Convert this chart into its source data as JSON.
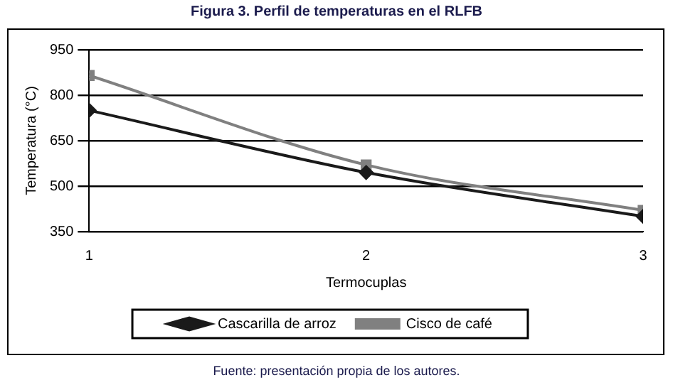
{
  "chart_data": {
    "type": "line",
    "title": "Figura 3. Perfil de temperaturas en el RLFB",
    "xlabel": "Termocuplas",
    "ylabel": "Temperatura (°C)",
    "x": [
      1,
      2,
      3
    ],
    "xlim": [
      1,
      3
    ],
    "xticks": [
      1,
      2,
      3
    ],
    "ylim": [
      350,
      950
    ],
    "yticks": [
      350,
      500,
      650,
      800,
      950
    ],
    "grid": "y",
    "legend": "bottom",
    "series": [
      {
        "name": "Cascarilla de arroz",
        "color": "#1a1a1a",
        "marker": "diamond",
        "values": [
          750,
          545,
          400
        ]
      },
      {
        "name": "Cisco de café",
        "color": "#808080",
        "marker": "square",
        "values": [
          865,
          570,
          420
        ]
      }
    ],
    "annotations": [
      "Fuente: presentación propia de los autores."
    ]
  }
}
